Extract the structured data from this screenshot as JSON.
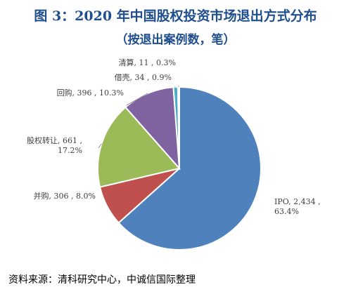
{
  "title": "图 3：2020 年中国股权投资市场退出方式分布",
  "subtitle": "（按退出案例数，笔）",
  "source": "资料来源：清科研究中心，中诚信国际整理",
  "chart_data": {
    "type": "pie",
    "title": "图 3：2020 年中国股权投资市场退出方式分布",
    "subtitle": "（按退出案例数，笔）",
    "series": [
      {
        "name": "IPO",
        "value": 2434,
        "percent": "63.4%",
        "color": "#4f81bd",
        "label_lines": [
          "IPO, 2,434 ,",
          "63.4%"
        ]
      },
      {
        "name": "并购",
        "value": 306,
        "percent": "8.0%",
        "color": "#c0504d",
        "label_lines": [
          "并购, 306 , 8.0%"
        ]
      },
      {
        "name": "股权转让",
        "value": 661,
        "percent": "17.2%",
        "color": "#9bbb59",
        "label_lines": [
          "股权转让, 661 ,",
          "17.2%"
        ]
      },
      {
        "name": "回购",
        "value": 396,
        "percent": "10.3%",
        "color": "#8064a2",
        "label_lines": [
          "回购, 396 , 10.3%"
        ]
      },
      {
        "name": "借壳",
        "value": 34,
        "percent": "0.9%",
        "color": "#4bacc6",
        "label_lines": [
          "借壳, 34 , 0.9%"
        ]
      },
      {
        "name": "清算",
        "value": 11,
        "percent": "0.3%",
        "color": "#f79646",
        "label_lines": [
          "清算, 11 , 0.3%"
        ]
      }
    ]
  }
}
